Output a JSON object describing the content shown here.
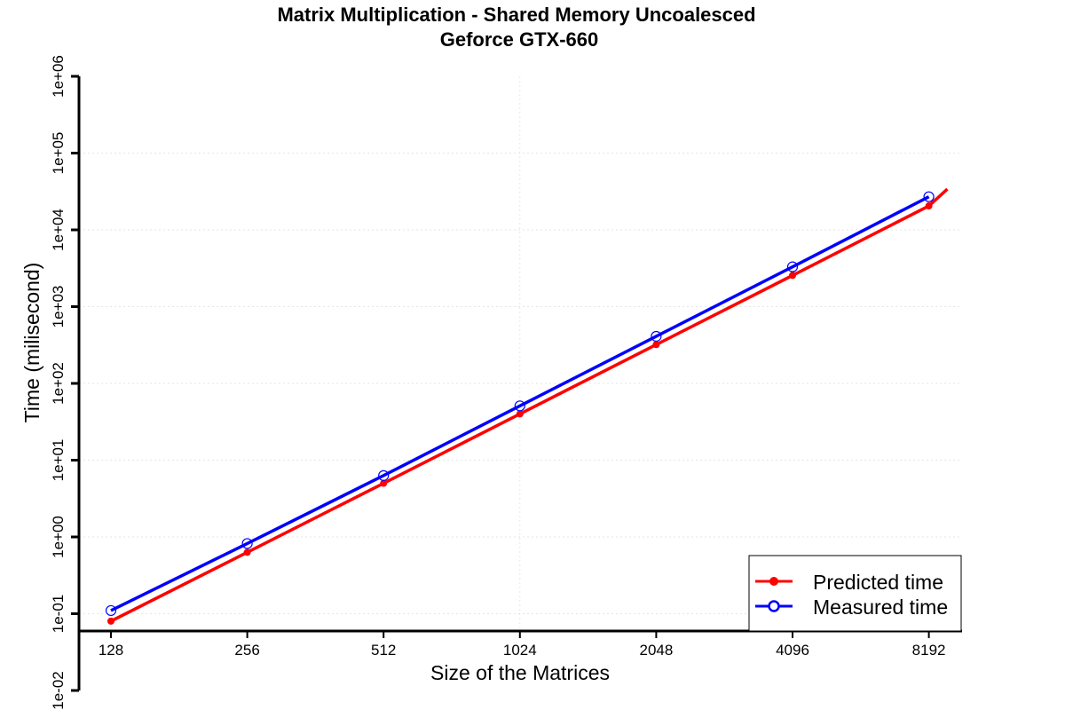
{
  "chart_data": {
    "type": "line",
    "title": "Matrix Multiplication - Shared Memory Uncoalesced",
    "subtitle": "Geforce GTX-660",
    "xlabel": "Size of the Matrices",
    "ylabel": "Time (milisecond)",
    "x_scale": "log2",
    "y_scale": "log10",
    "x": [
      128,
      256,
      512,
      1024,
      2048,
      4096,
      8192
    ],
    "x_tick_labels": [
      "128",
      "256",
      "512",
      "1024",
      "2048",
      "4096",
      "8192"
    ],
    "y_tick_values": [
      0.01,
      0.1,
      1,
      10,
      100,
      1000,
      10000,
      100000,
      1000000
    ],
    "y_tick_labels": [
      "1e-02",
      "1e-01",
      "1e+00",
      "1e+01",
      "1e+02",
      "1e+03",
      "1e+04",
      "1e+05",
      "1e+06"
    ],
    "ylim": [
      0.01,
      1000000
    ],
    "grid": true,
    "legend_position": "bottom-right",
    "series": [
      {
        "name": "Predicted time",
        "color": "#ff0000",
        "marker": "filled-circle",
        "values": [
          0.08,
          0.63,
          5.0,
          40,
          320,
          2550,
          20500
        ],
        "trend_extension_x": 9000,
        "trend_extension_y": 34000
      },
      {
        "name": "Measured time",
        "color": "#0000ff",
        "marker": "open-circle",
        "values": [
          0.11,
          0.82,
          6.3,
          51,
          410,
          3300,
          27000
        ]
      }
    ]
  }
}
